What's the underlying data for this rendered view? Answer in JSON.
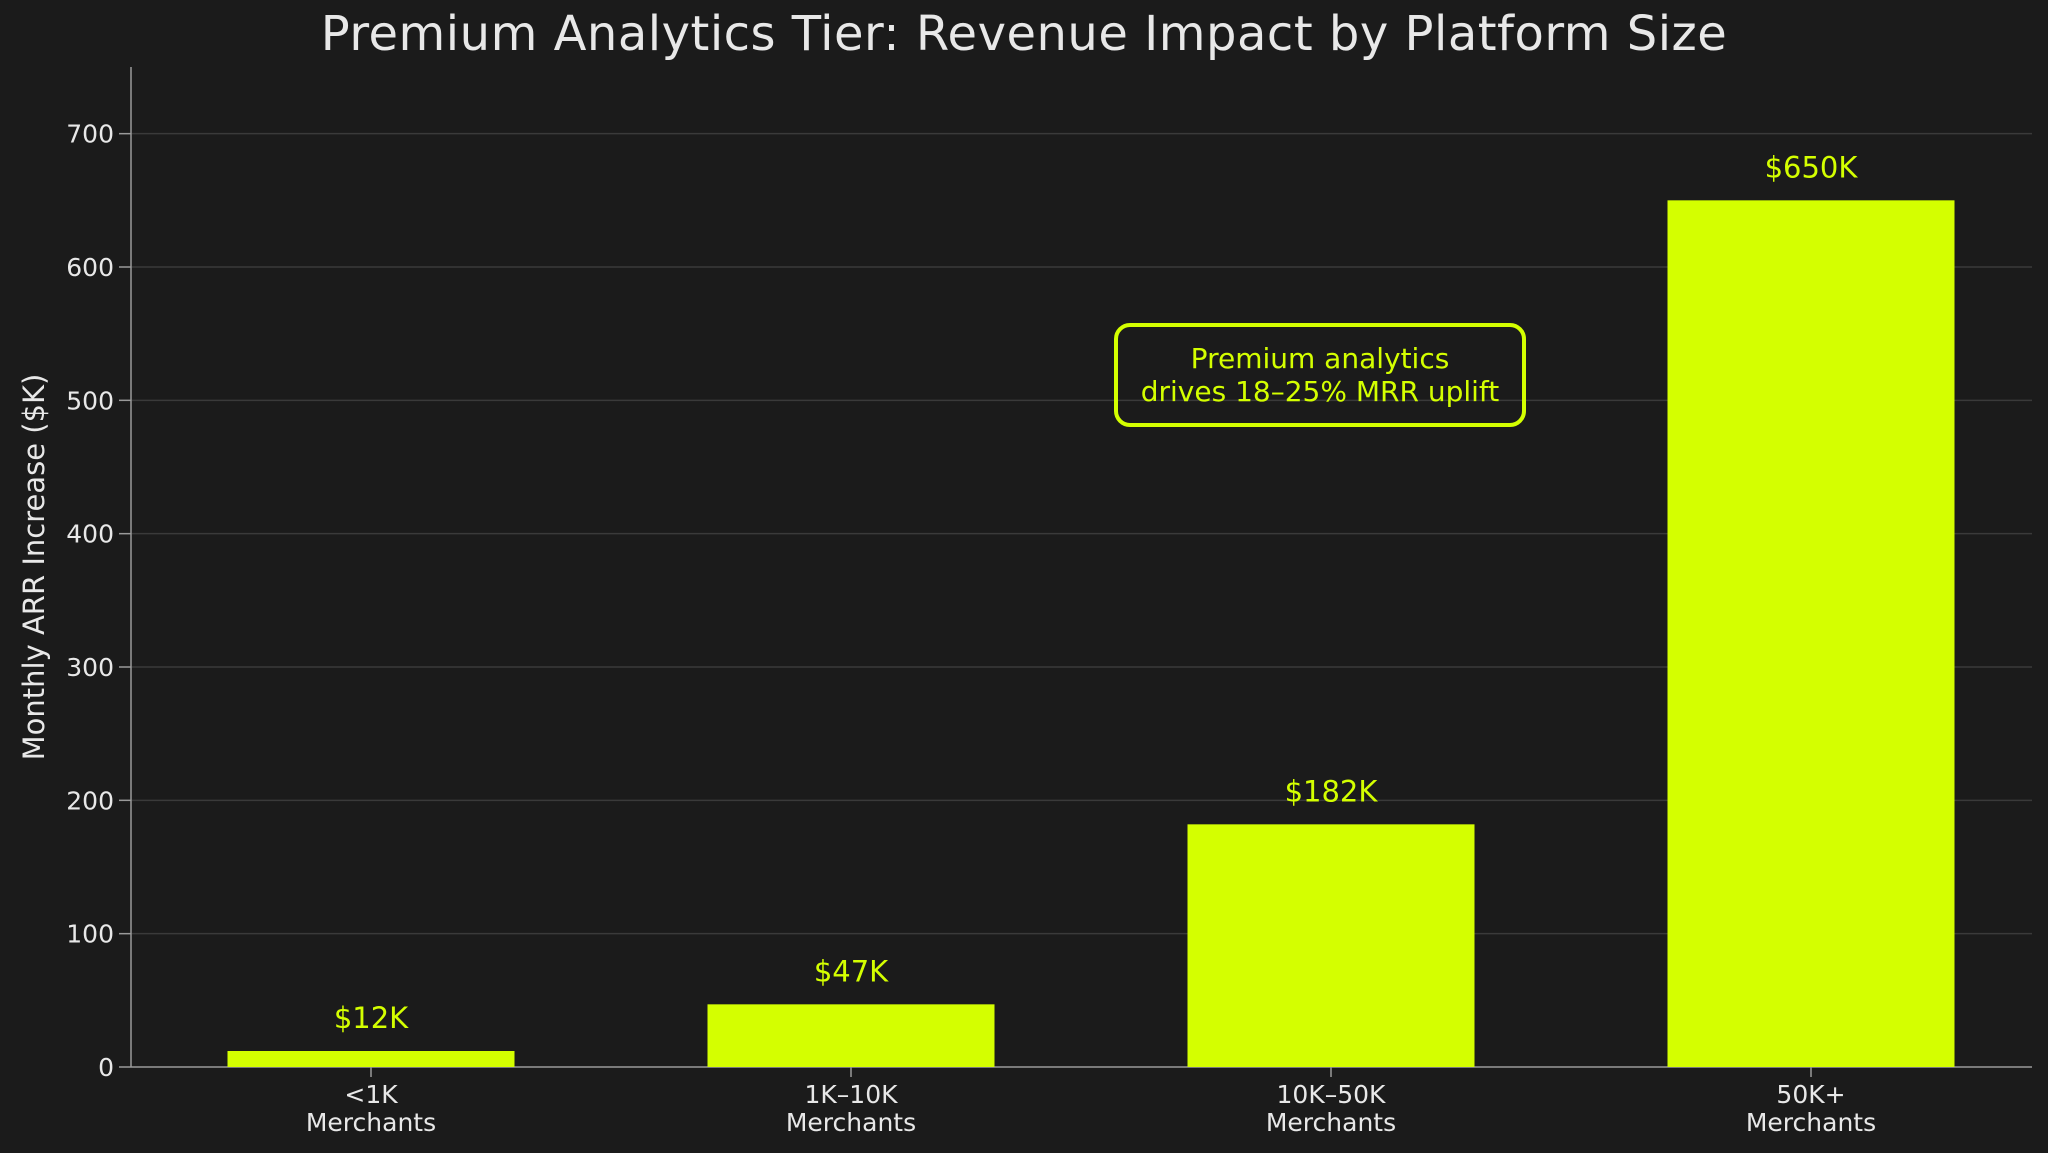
{
  "chart_data": {
    "type": "bar",
    "title": "Premium Analytics Tier: Revenue Impact by Platform Size",
    "xlabel": "",
    "ylabel": "Monthly ARR Increase ($K)",
    "categories": [
      "<1K\nMerchants",
      "1K–10K\nMerchants",
      "10K–50K\nMerchants",
      "50K+\nMerchants"
    ],
    "values": [
      12,
      47,
      182,
      650
    ],
    "data_labels": [
      "$12K",
      "$47K",
      "$182K",
      "$650K"
    ],
    "ylim": [
      0,
      750
    ],
    "yticks": [
      0,
      100,
      200,
      300,
      400,
      500,
      600,
      700
    ],
    "grid": true,
    "annotation": {
      "line1": "Premium analytics",
      "line2": "drives 18–25% MRR uplift"
    }
  },
  "colors": {
    "background": "#1b1b1b",
    "bar": "#d4ff00",
    "text": "#e8e8e8",
    "grid": "#3a3a3a",
    "axis": "#9a9a9a"
  }
}
